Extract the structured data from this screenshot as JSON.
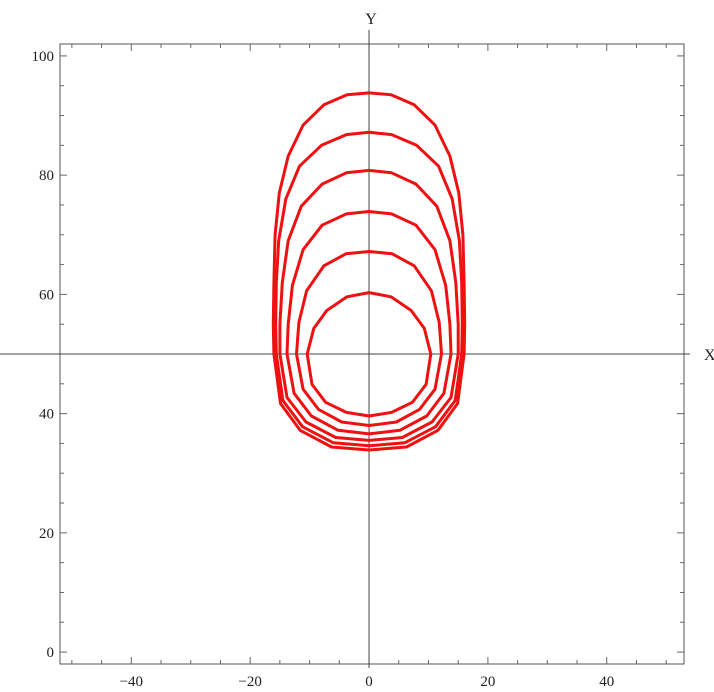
{
  "chart_data": {
    "type": "line",
    "title": "",
    "xlabel": "X",
    "ylabel": "Y",
    "xlim": [
      -52,
      53
    ],
    "ylim": [
      -2,
      102
    ],
    "axis_origin": [
      0,
      50
    ],
    "xticks": [
      -40,
      -20,
      0,
      20,
      40
    ],
    "yticks": [
      0,
      20,
      40,
      60,
      80,
      100
    ],
    "xtick_labels": [
      "−40",
      "−20",
      "0",
      "20",
      "40"
    ],
    "ytick_labels": [
      "0",
      "20",
      "40",
      "60",
      "80",
      "100"
    ],
    "grid": false,
    "frame": true,
    "color": "#ee1111",
    "series": [
      {
        "points": [
          [
            0,
            60.3
          ],
          [
            3.7,
            59.6
          ],
          [
            7.1,
            57.3
          ],
          [
            9.3,
            54.3
          ],
          [
            10.4,
            50
          ],
          [
            9.6,
            44.9
          ],
          [
            7.3,
            41.9
          ],
          [
            3.8,
            40.2
          ],
          [
            0,
            39.6
          ],
          [
            -3.8,
            40.2
          ],
          [
            -7.3,
            41.9
          ],
          [
            -9.6,
            44.9
          ],
          [
            -10.4,
            50
          ],
          [
            -9.3,
            54.3
          ],
          [
            -7.1,
            57.3
          ],
          [
            -3.7,
            59.6
          ],
          [
            0,
            60.3
          ]
        ]
      },
      {
        "points": [
          [
            0,
            67.2
          ],
          [
            3.9,
            66.8
          ],
          [
            7.6,
            64.8
          ],
          [
            10.5,
            60.6
          ],
          [
            11.8,
            55.3
          ],
          [
            12.2,
            50
          ],
          [
            11.1,
            44.1
          ],
          [
            8.5,
            40.7
          ],
          [
            4.6,
            38.6
          ],
          [
            0,
            38
          ],
          [
            -4.6,
            38.6
          ],
          [
            -8.5,
            40.7
          ],
          [
            -11.1,
            44.1
          ],
          [
            -12.2,
            50
          ],
          [
            -11.8,
            55.3
          ],
          [
            -10.5,
            60.6
          ],
          [
            -7.6,
            64.8
          ],
          [
            -3.9,
            66.8
          ],
          [
            0,
            67.2
          ]
        ]
      },
      {
        "points": [
          [
            0,
            73.9
          ],
          [
            3.8,
            73.5
          ],
          [
            7.9,
            71.6
          ],
          [
            11.1,
            67.5
          ],
          [
            12.9,
            61.5
          ],
          [
            13.6,
            55
          ],
          [
            13.8,
            50
          ],
          [
            12.6,
            43.4
          ],
          [
            9.7,
            39.6
          ],
          [
            5.2,
            37.2
          ],
          [
            0,
            36.6
          ],
          [
            -5.2,
            37.2
          ],
          [
            -9.7,
            39.6
          ],
          [
            -12.6,
            43.4
          ],
          [
            -13.8,
            50
          ],
          [
            -13.6,
            55
          ],
          [
            -12.9,
            61.5
          ],
          [
            -11.1,
            67.5
          ],
          [
            -7.9,
            71.6
          ],
          [
            -3.8,
            73.5
          ],
          [
            0,
            73.9
          ]
        ]
      },
      {
        "points": [
          [
            0,
            80.8
          ],
          [
            3.8,
            80.4
          ],
          [
            7.9,
            78.5
          ],
          [
            11.4,
            74.8
          ],
          [
            13.6,
            69
          ],
          [
            14.6,
            62
          ],
          [
            15,
            55
          ],
          [
            15,
            50
          ],
          [
            13.8,
            42.7
          ],
          [
            10.6,
            38.6
          ],
          [
            5.6,
            36
          ],
          [
            0,
            35.5
          ],
          [
            -5.6,
            36
          ],
          [
            -10.6,
            38.6
          ],
          [
            -13.8,
            42.7
          ],
          [
            -15,
            50
          ],
          [
            -15,
            55
          ],
          [
            -14.6,
            62
          ],
          [
            -13.6,
            69
          ],
          [
            -11.4,
            74.8
          ],
          [
            -7.9,
            78.5
          ],
          [
            -3.8,
            80.4
          ],
          [
            0,
            80.8
          ]
        ]
      },
      {
        "points": [
          [
            0,
            87.2
          ],
          [
            3.8,
            86.8
          ],
          [
            8,
            85
          ],
          [
            11.7,
            81.5
          ],
          [
            14,
            76
          ],
          [
            15.2,
            69
          ],
          [
            15.6,
            62
          ],
          [
            15.7,
            55
          ],
          [
            15.6,
            50
          ],
          [
            14.5,
            42.2
          ],
          [
            11.2,
            37.8
          ],
          [
            6,
            35.1
          ],
          [
            0,
            34.6
          ],
          [
            -6,
            35.1
          ],
          [
            -11.2,
            37.8
          ],
          [
            -14.5,
            42.2
          ],
          [
            -15.6,
            50
          ],
          [
            -15.7,
            55
          ],
          [
            -15.6,
            62
          ],
          [
            -15.2,
            69
          ],
          [
            -14,
            76
          ],
          [
            -11.7,
            81.5
          ],
          [
            -8,
            85
          ],
          [
            -3.8,
            86.8
          ],
          [
            0,
            87.2
          ]
        ]
      },
      {
        "points": [
          [
            0,
            93.8
          ],
          [
            3.7,
            93.5
          ],
          [
            7.6,
            91.8
          ],
          [
            11.1,
            88.4
          ],
          [
            13.6,
            83.2
          ],
          [
            15.1,
            77
          ],
          [
            15.8,
            70
          ],
          [
            16,
            62
          ],
          [
            16.1,
            55
          ],
          [
            16,
            50
          ],
          [
            14.9,
            41.7
          ],
          [
            11.6,
            37.2
          ],
          [
            6.3,
            34.4
          ],
          [
            0,
            33.9
          ],
          [
            -6.3,
            34.4
          ],
          [
            -11.6,
            37.2
          ],
          [
            -14.9,
            41.7
          ],
          [
            -16,
            50
          ],
          [
            -16.1,
            55
          ],
          [
            -16,
            62
          ],
          [
            -15.8,
            70
          ],
          [
            -15.1,
            77
          ],
          [
            -13.6,
            83.2
          ],
          [
            -11.1,
            88.4
          ],
          [
            -7.6,
            91.8
          ],
          [
            -3.7,
            93.5
          ],
          [
            0,
            93.8
          ]
        ]
      }
    ]
  }
}
